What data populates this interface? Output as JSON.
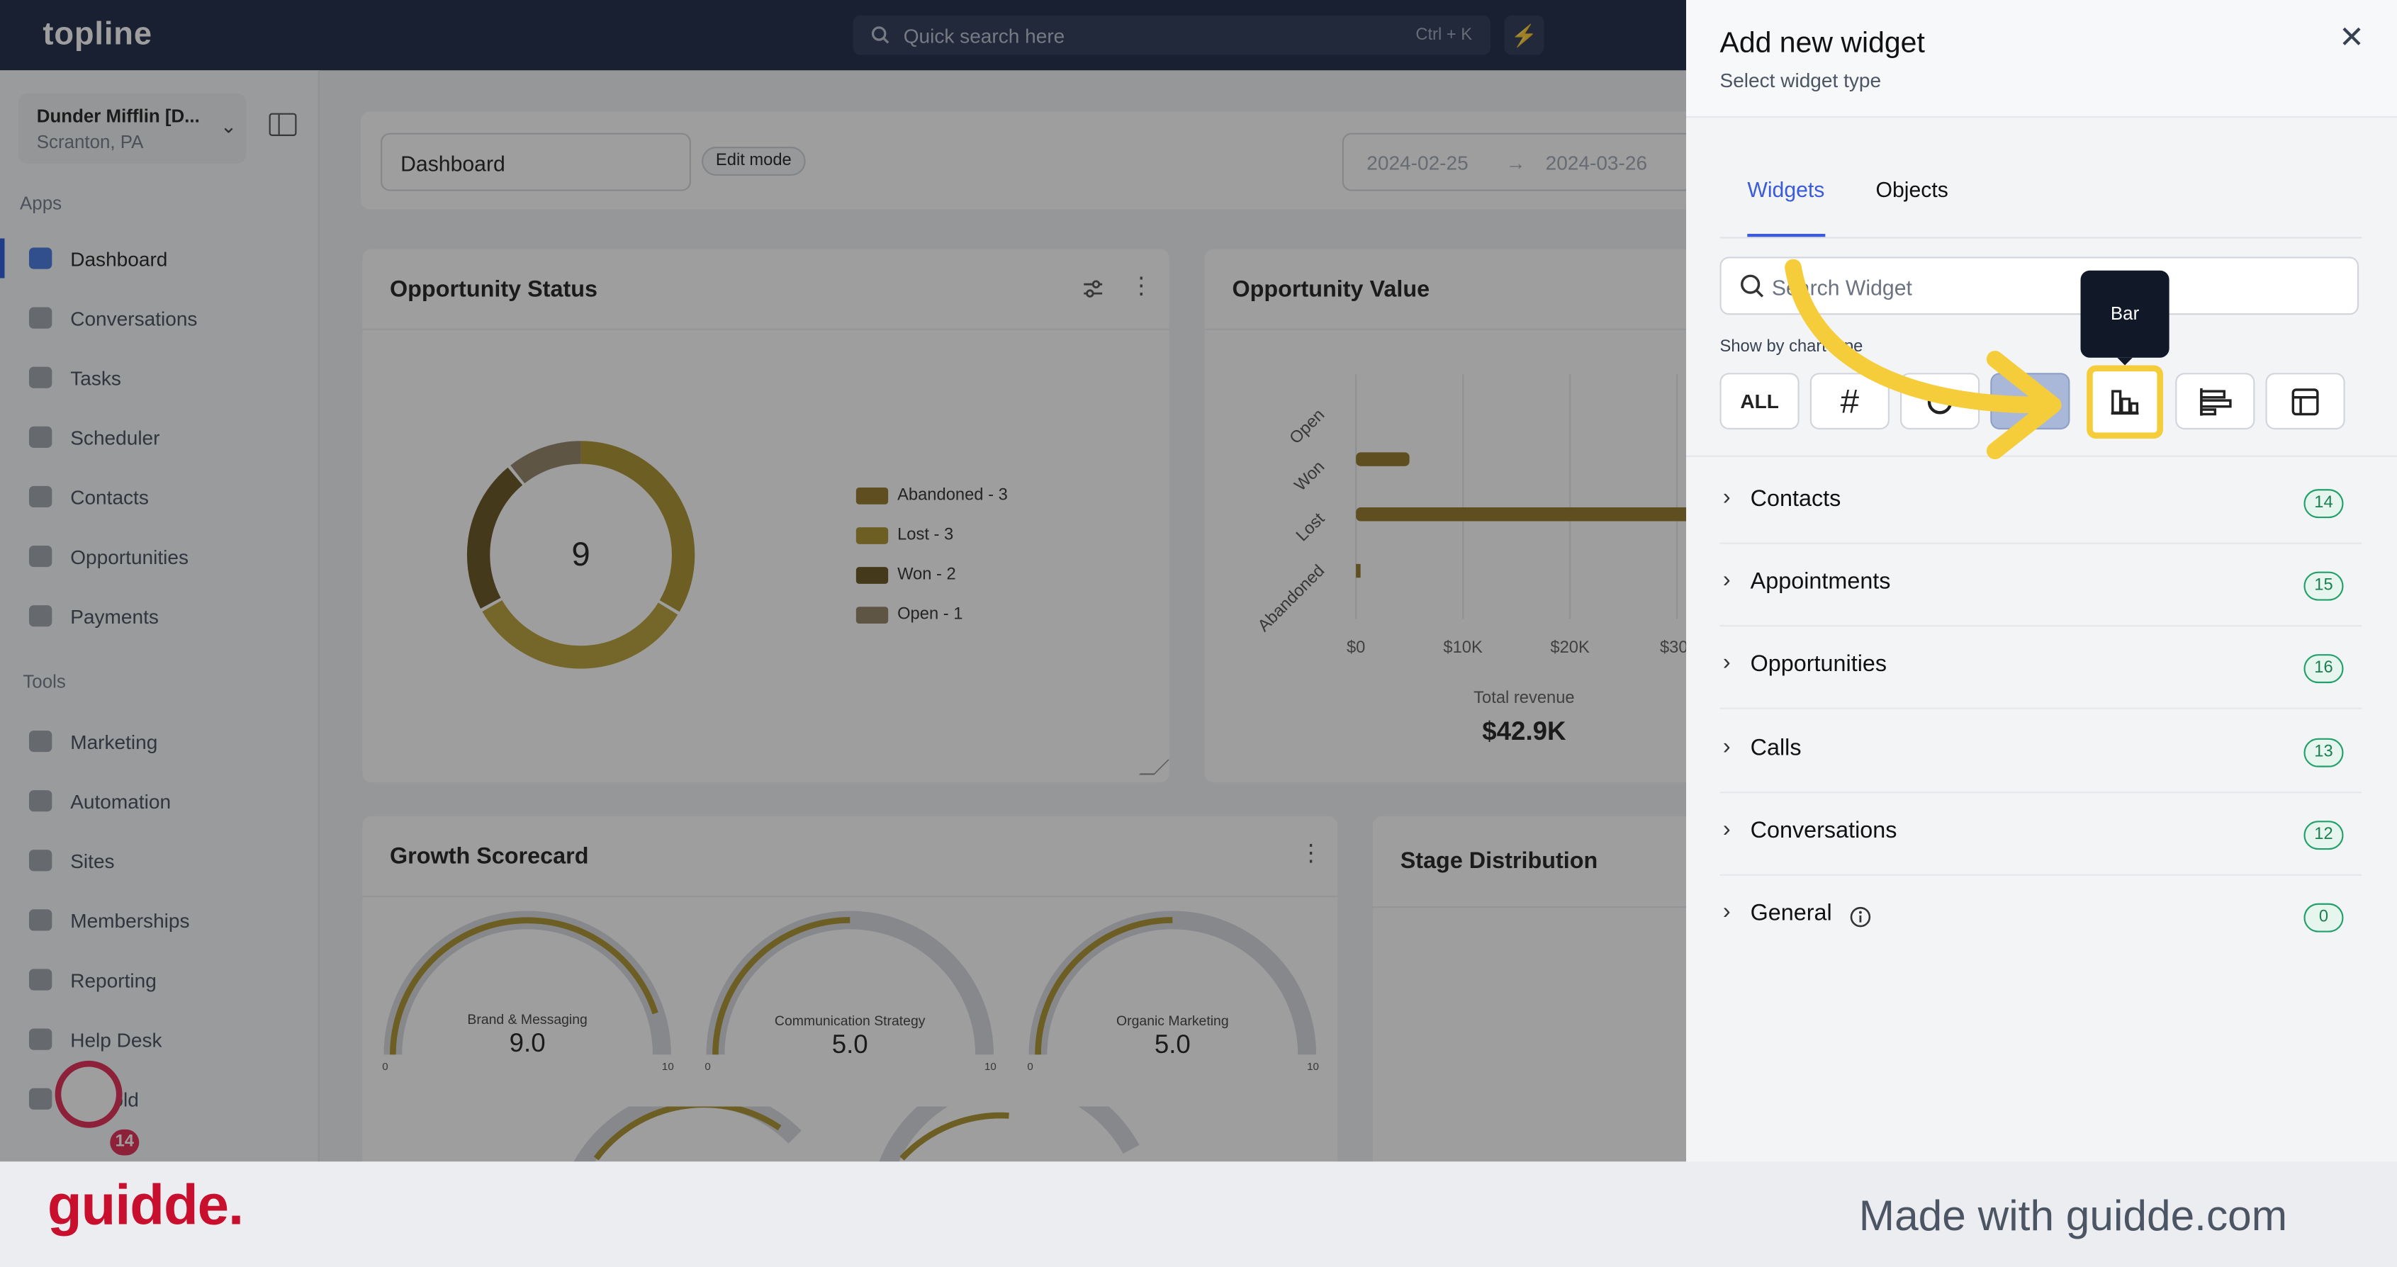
{
  "app": {
    "logo": "topline"
  },
  "topbar": {
    "search_placeholder": "Quick search here",
    "shortcut": "Ctrl + K"
  },
  "location": {
    "name": "Dunder Mifflin [D...",
    "subtitle": "Scranton, PA"
  },
  "sidebar": {
    "apps_label": "Apps",
    "apps": [
      {
        "label": "Dashboard",
        "icon": "dashboard-icon",
        "active": true
      },
      {
        "label": "Conversations",
        "icon": "chat-icon"
      },
      {
        "label": "Tasks",
        "icon": "tasks-icon"
      },
      {
        "label": "Scheduler",
        "icon": "calendar-icon"
      },
      {
        "label": "Contacts",
        "icon": "user-icon"
      },
      {
        "label": "Opportunities",
        "icon": "target-icon"
      },
      {
        "label": "Payments",
        "icon": "card-icon"
      }
    ],
    "tools_label": "Tools",
    "tools": [
      {
        "label": "Marketing",
        "icon": "megaphone-icon"
      },
      {
        "label": "Automation",
        "icon": "gears-icon"
      },
      {
        "label": "Sites",
        "icon": "globe-icon"
      },
      {
        "label": "Memberships",
        "icon": "members-icon"
      },
      {
        "label": "Reporting",
        "icon": "pie-icon"
      },
      {
        "label": "Help Desk",
        "icon": "help-icon"
      },
      {
        "label": "Mailfold",
        "icon": "mail-icon"
      }
    ],
    "avatar_badge": "14"
  },
  "dashboard": {
    "name": "Dashboard",
    "edit_mode": "Edit mode",
    "date_from": "2024-02-25",
    "date_to": "2024-03-26"
  },
  "opportunity_status": {
    "title": "Opportunity Status",
    "center_value": "9",
    "legend": [
      {
        "label": "Abandoned - 3",
        "color": "#8a6d1a"
      },
      {
        "label": "Lost - 3",
        "color": "#a78a22"
      },
      {
        "label": "Won - 2",
        "color": "#5c4712"
      },
      {
        "label": "Open - 1",
        "color": "#8d7a5d"
      }
    ]
  },
  "opportunity_value": {
    "title": "Opportunity Value",
    "categories": [
      "Open",
      "Won",
      "Lost",
      "Abandoned"
    ],
    "x_ticks": [
      "$0",
      "$10K",
      "$20K",
      "$30"
    ],
    "footer_label": "Total revenue",
    "footer_value": "$42.9K",
    "bar_color": "#8a6d1a"
  },
  "growth_scorecard": {
    "title": "Growth Scorecard",
    "gauges": [
      {
        "label": "Brand & Messaging",
        "value": "9.0",
        "min": "0",
        "max": "10"
      },
      {
        "label": "Communication Strategy",
        "value": "5.0",
        "min": "0",
        "max": "10"
      },
      {
        "label": "Organic Marketing",
        "value": "5.0",
        "min": "0",
        "max": "10"
      }
    ]
  },
  "stage_distribution": {
    "title": "Stage Distribution"
  },
  "panel": {
    "title": "Add new widget",
    "subtitle": "Select widget type",
    "tabs": [
      {
        "label": "Widgets",
        "active": true
      },
      {
        "label": "Objects"
      }
    ],
    "search_placeholder": "Search Widget",
    "chart_type_label": "Show by chart type",
    "chart_types": [
      {
        "label": "ALL"
      },
      {
        "label": "#"
      },
      {
        "icon": "donut-icon"
      },
      {
        "icon": "selected-chart-icon",
        "selected": true
      },
      {
        "icon": "bar-chart-icon",
        "highlighted": true
      },
      {
        "icon": "horizontal-bar-icon"
      },
      {
        "icon": "table-icon"
      }
    ],
    "tooltip": "Bar",
    "categories": [
      {
        "name": "Contacts",
        "count": "14"
      },
      {
        "name": "Appointments",
        "count": "15"
      },
      {
        "name": "Opportunities",
        "count": "16"
      },
      {
        "name": "Calls",
        "count": "13"
      },
      {
        "name": "Conversations",
        "count": "12"
      },
      {
        "name": "General",
        "count": "0"
      }
    ],
    "accent": "#3b5bdb",
    "highlight": "#f5cd3a"
  },
  "footer": {
    "brand": "guidde.",
    "made_with": "Made with guidde.com",
    "brand_color": "#c8102e"
  }
}
